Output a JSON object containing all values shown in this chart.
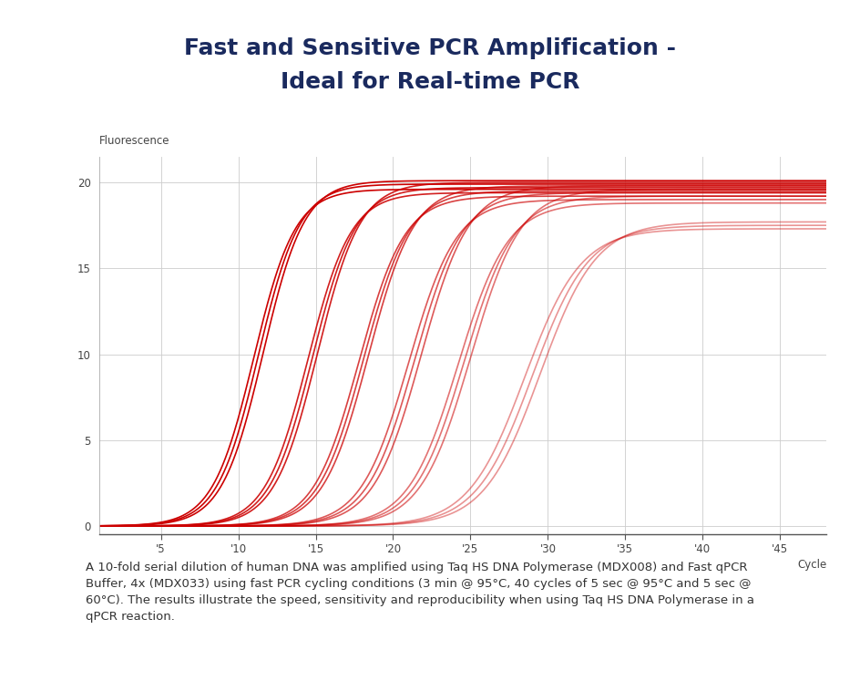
{
  "title_line1": "Fast and Sensitive PCR Amplification -",
  "title_line2": "Ideal for Real-time PCR",
  "title_color": "#1a2a5e",
  "title_fontsize": 18,
  "ylabel": "Fluorescence",
  "xlabel": "Cycle",
  "background_color": "#ffffff",
  "plot_bg_color": "#ffffff",
  "grid_color": "#cccccc",
  "xlim": [
    1,
    48
  ],
  "ylim": [
    -0.5,
    21.5
  ],
  "xticks": [
    5,
    10,
    15,
    20,
    25,
    30,
    35,
    40,
    45
  ],
  "yticks": [
    0,
    5,
    10,
    15,
    20
  ],
  "caption": "A 10-fold serial dilution of human DNA was amplified using Taq HS DNA Polymerase (MDX008) and Fast qPCR\nBuffer, 4x (MDX033) using fast PCR cycling conditions (3 min @ 95°C, 40 cycles of 5 sec @ 95°C and 5 sec @\n60°C). The results illustrate the speed, sensitivity and reproducibility when using Taq HS DNA Polymerase in a\nqPCR reaction.",
  "caption_fontsize": 9.5,
  "curve_groups": [
    {
      "midpoint": 11.0,
      "top": 19.6,
      "steepness": 0.75,
      "color": "#cc0000",
      "alpha": 1.0,
      "lw": 1.2
    },
    {
      "midpoint": 11.3,
      "top": 19.9,
      "steepness": 0.75,
      "color": "#cc0000",
      "alpha": 1.0,
      "lw": 1.2
    },
    {
      "midpoint": 11.6,
      "top": 20.1,
      "steepness": 0.75,
      "color": "#cc0000",
      "alpha": 1.0,
      "lw": 1.2
    },
    {
      "midpoint": 14.5,
      "top": 19.4,
      "steepness": 0.72,
      "color": "#cc0000",
      "alpha": 0.88,
      "lw": 1.2
    },
    {
      "midpoint": 14.8,
      "top": 19.7,
      "steepness": 0.72,
      "color": "#cc0000",
      "alpha": 0.88,
      "lw": 1.2
    },
    {
      "midpoint": 15.1,
      "top": 20.0,
      "steepness": 0.72,
      "color": "#cc0000",
      "alpha": 0.88,
      "lw": 1.2
    },
    {
      "midpoint": 17.8,
      "top": 19.2,
      "steepness": 0.68,
      "color": "#cc0000",
      "alpha": 0.75,
      "lw": 1.2
    },
    {
      "midpoint": 18.1,
      "top": 19.5,
      "steepness": 0.68,
      "color": "#cc0000",
      "alpha": 0.75,
      "lw": 1.2
    },
    {
      "midpoint": 18.4,
      "top": 19.8,
      "steepness": 0.68,
      "color": "#cc0000",
      "alpha": 0.75,
      "lw": 1.2
    },
    {
      "midpoint": 21.0,
      "top": 19.0,
      "steepness": 0.65,
      "color": "#cc0000",
      "alpha": 0.65,
      "lw": 1.2
    },
    {
      "midpoint": 21.4,
      "top": 19.4,
      "steepness": 0.65,
      "color": "#cc0000",
      "alpha": 0.65,
      "lw": 1.2
    },
    {
      "midpoint": 21.8,
      "top": 19.8,
      "steepness": 0.65,
      "color": "#cc0000",
      "alpha": 0.65,
      "lw": 1.2
    },
    {
      "midpoint": 24.2,
      "top": 18.8,
      "steepness": 0.62,
      "color": "#cc0000",
      "alpha": 0.55,
      "lw": 1.2
    },
    {
      "midpoint": 24.6,
      "top": 19.2,
      "steepness": 0.62,
      "color": "#cc0000",
      "alpha": 0.55,
      "lw": 1.2
    },
    {
      "midpoint": 25.0,
      "top": 19.6,
      "steepness": 0.62,
      "color": "#cc0000",
      "alpha": 0.55,
      "lw": 1.2
    },
    {
      "midpoint": 28.5,
      "top": 17.3,
      "steepness": 0.55,
      "color": "#cc0000",
      "alpha": 0.42,
      "lw": 1.2
    },
    {
      "midpoint": 29.0,
      "top": 17.5,
      "steepness": 0.55,
      "color": "#cc0000",
      "alpha": 0.42,
      "lw": 1.2
    },
    {
      "midpoint": 29.5,
      "top": 17.7,
      "steepness": 0.55,
      "color": "#cc0000",
      "alpha": 0.42,
      "lw": 1.2
    }
  ]
}
